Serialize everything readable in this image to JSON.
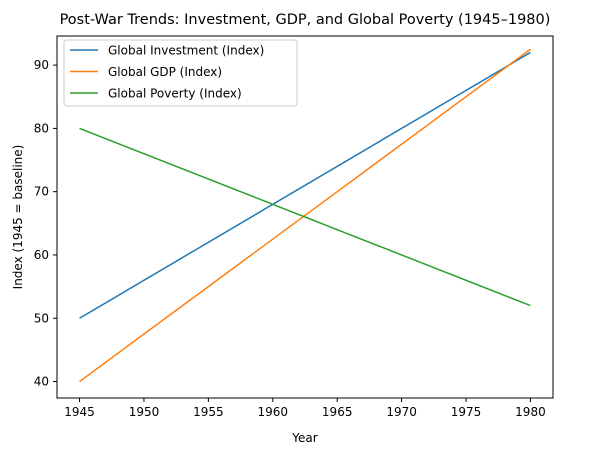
{
  "chart_data": {
    "type": "line",
    "title": "Post-War Trends: Investment, GDP, and Global Poverty (1945–1980)",
    "xlabel": "Year",
    "ylabel": "Index (1945 = baseline)",
    "xlim": [
      1943.25,
      1981.75
    ],
    "ylim": [
      37.4,
      94.6
    ],
    "xticks": [
      1945,
      1950,
      1955,
      1960,
      1965,
      1970,
      1975,
      1980
    ],
    "yticks": [
      40,
      50,
      60,
      70,
      80,
      90
    ],
    "grid": false,
    "legend_position": "upper-left",
    "series": [
      {
        "name": "Global Investment (Index)",
        "color": "#1f77b4",
        "x": [
          1945,
          1980
        ],
        "y": [
          50,
          92
        ]
      },
      {
        "name": "Global GDP (Index)",
        "color": "#ff7f0e",
        "x": [
          1945,
          1980
        ],
        "y": [
          40,
          92.5
        ]
      },
      {
        "name": "Global Poverty (Index)",
        "color": "#2ca02c",
        "x": [
          1945,
          1980
        ],
        "y": [
          80,
          52
        ]
      }
    ]
  }
}
